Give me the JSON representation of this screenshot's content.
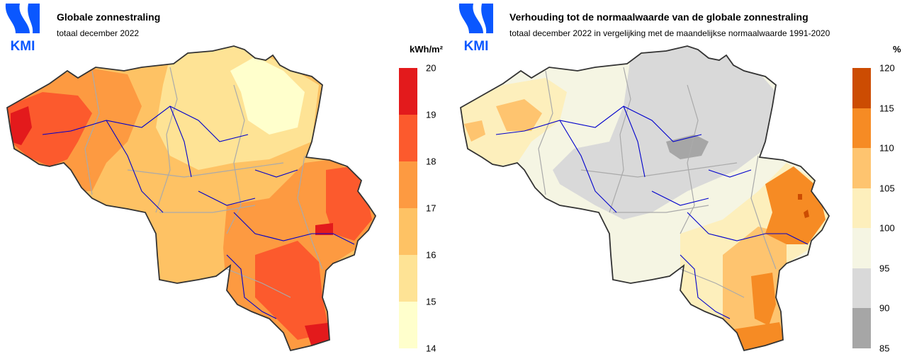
{
  "logo_text": "KMI",
  "maps": [
    {
      "title": "Globale zonnestraling",
      "subtitle": "totaal december 2022",
      "unit": "kWh/m²",
      "legend": {
        "ticks": [
          "20",
          "19",
          "18",
          "17",
          "16",
          "15",
          "14"
        ],
        "colors": [
          "#e31a1c",
          "#fc5a2d",
          "#fd9a41",
          "#fec264",
          "#fee395",
          "#ffffcc"
        ]
      },
      "palette": {
        "border": "#333333",
        "rivers": "#0000cc",
        "provinces": "#aaaaaa"
      }
    },
    {
      "title": "Verhouding tot de normaalwaarde van de globale zonnestraling",
      "subtitle": "totaal december 2022 in vergelijking met de maandelijkse normaalwaarde 1991-2020",
      "unit": "%",
      "legend": {
        "ticks": [
          "120",
          "115",
          "110",
          "105",
          "100",
          "95",
          "90",
          "85"
        ],
        "colors": [
          "#cc4c02",
          "#f68b24",
          "#fec46f",
          "#fdefbc",
          "#f5f5e3",
          "#d9d9d9",
          "#a6a6a6"
        ]
      },
      "palette": {
        "border": "#333333",
        "rivers": "#0000cc",
        "provinces": "#aaaaaa"
      }
    }
  ]
}
